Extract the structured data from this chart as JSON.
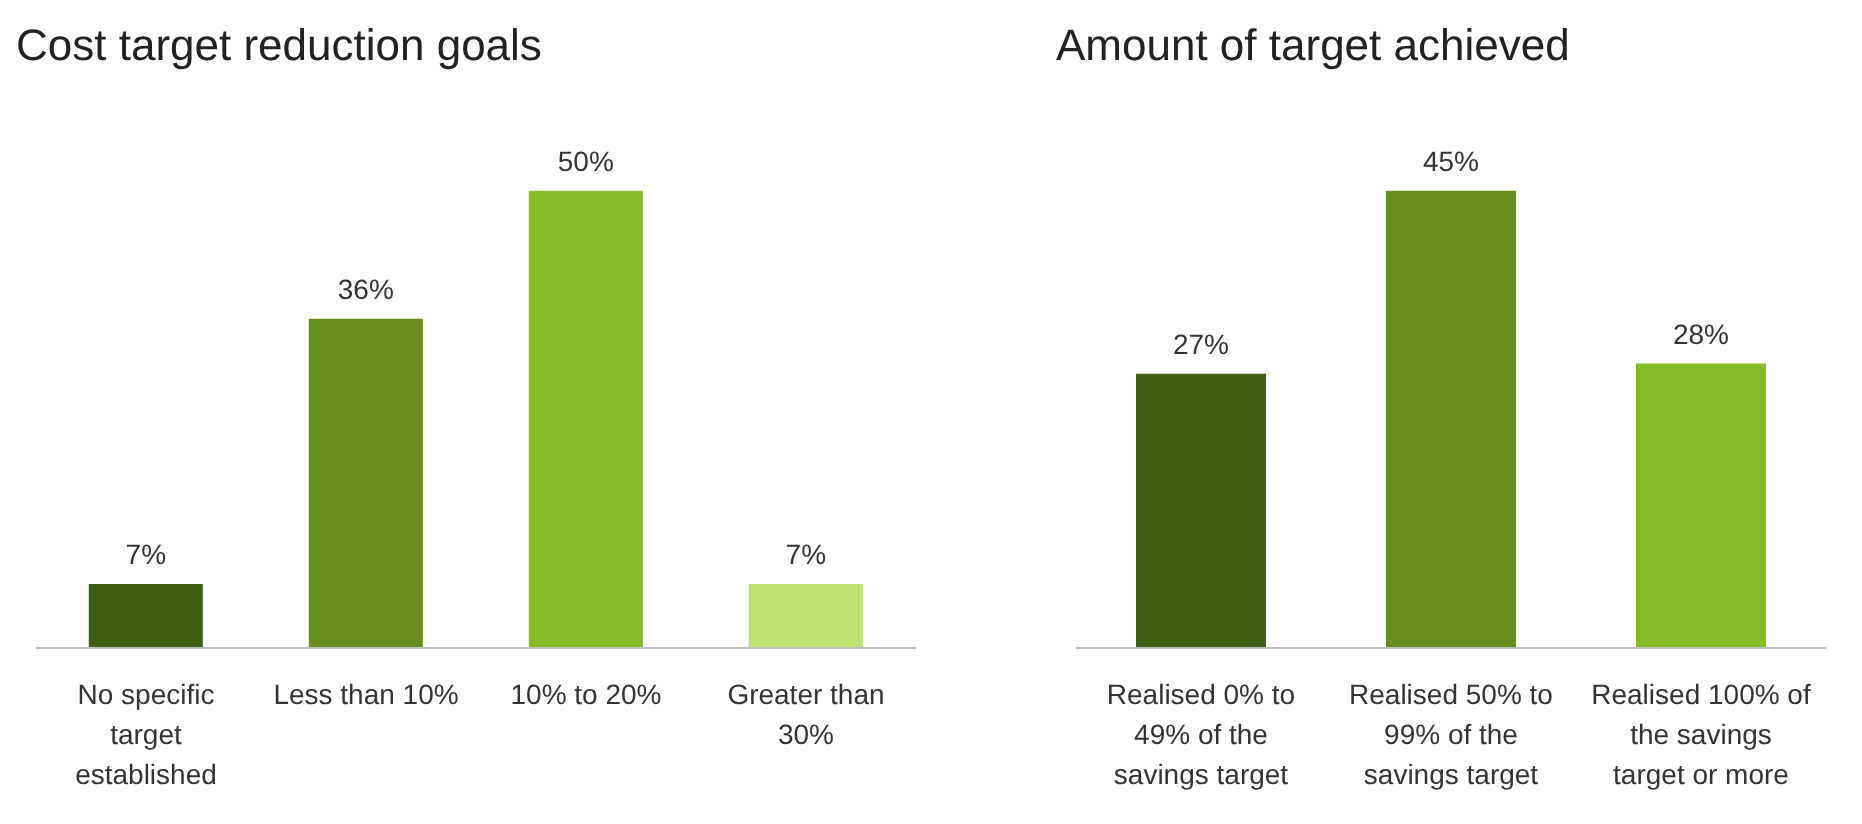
{
  "chart_data": [
    {
      "type": "bar",
      "title": "Cost target reduction goals",
      "categories": [
        "No specific target established",
        "Less than 10%",
        "10% to 20%",
        "Greater than 30%"
      ],
      "values": [
        7,
        36,
        50,
        7
      ],
      "colors": [
        "#3f5f14",
        "#678d1f",
        "#86bc25",
        "#bde271"
      ],
      "value_labels": [
        "7%",
        "36%",
        "50%",
        "7%"
      ]
    },
    {
      "type": "bar",
      "title": "Amount of target achieved",
      "categories": [
        "Realised 0% to 49% of the savings target",
        "Realised 50% to 99% of the savings target",
        "Realised 100% of the savings target or more"
      ],
      "values": [
        27,
        45,
        28
      ],
      "colors": [
        "#3f5f14",
        "#678d1f",
        "#86bc25"
      ],
      "value_labels": [
        "27%",
        "45%",
        "28%"
      ]
    }
  ]
}
